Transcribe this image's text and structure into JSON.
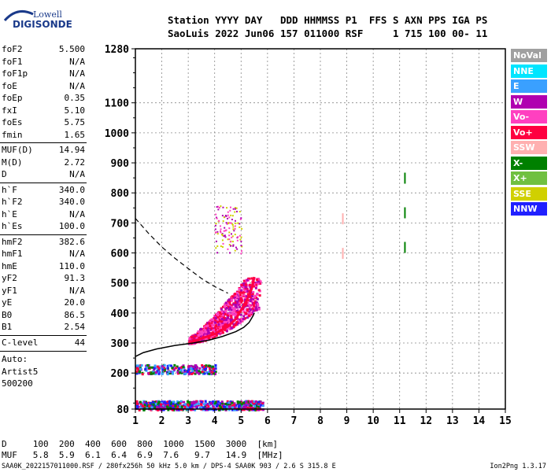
{
  "logo": {
    "top": "Lowell",
    "bottom": "DIGISONDE"
  },
  "header": {
    "line1": "Station YYYY DAY   DDD HHMMSS P1  FFS S AXN PPS IGA PS",
    "line2": "SaoLuis 2022 Jun06 157 011000 RSF     1 715 100 00- 11"
  },
  "parameters": [
    {
      "name": "foF2",
      "value": "5.500"
    },
    {
      "name": "foF1",
      "value": "N/A"
    },
    {
      "name": "foF1p",
      "value": "N/A"
    },
    {
      "name": "foE",
      "value": "N/A"
    },
    {
      "name": "foEp",
      "value": "0.35"
    },
    {
      "name": "fxI",
      "value": "5.10"
    },
    {
      "name": "foEs",
      "value": "5.75"
    },
    {
      "name": "fmin",
      "value": "1.65"
    },
    {
      "name": "MUF(D)",
      "value": "14.94"
    },
    {
      "name": "M(D)",
      "value": "2.72"
    },
    {
      "name": "D",
      "value": "N/A"
    },
    {
      "name": "h`F",
      "value": "340.0"
    },
    {
      "name": "h`F2",
      "value": "340.0"
    },
    {
      "name": "h`E",
      "value": "N/A"
    },
    {
      "name": "h`Es",
      "value": "100.0"
    },
    {
      "name": "hmF2",
      "value": "382.6"
    },
    {
      "name": "hmF1",
      "value": "N/A"
    },
    {
      "name": "hmE",
      "value": "110.0"
    },
    {
      "name": "yF2",
      "value": "91.3"
    },
    {
      "name": "yF1",
      "value": "N/A"
    },
    {
      "name": "yE",
      "value": "20.0"
    },
    {
      "name": "B0",
      "value": "86.5"
    },
    {
      "name": "B1",
      "value": "2.54"
    },
    {
      "name": "C-level",
      "value": "44"
    }
  ],
  "auto": {
    "line1": "Auto:",
    "line2": "Artist5",
    "line3": "500200"
  },
  "legend": [
    {
      "label": "NoVal",
      "color": "#a0a0a0"
    },
    {
      "label": "NNE",
      "color": "#00e5ff"
    },
    {
      "label": "E",
      "color": "#3aa0ff"
    },
    {
      "label": "W",
      "color": "#b000b0"
    },
    {
      "label": "Vo-",
      "color": "#ff40c0"
    },
    {
      "label": "Vo+",
      "color": "#ff0040"
    },
    {
      "label": "SSW",
      "color": "#ffb0b0"
    },
    {
      "label": "X-",
      "color": "#008000"
    },
    {
      "label": "X+",
      "color": "#70c040"
    },
    {
      "label": "SSE",
      "color": "#d0d000"
    },
    {
      "label": "NNW",
      "color": "#2020ff"
    }
  ],
  "muf_table": {
    "d_row": "D     100  200  400  600  800  1000  1500  3000  [km]",
    "muf_row": "MUF   5.8  5.9  6.1  6.4  6.9  7.6   9.7   14.9  [MHz]"
  },
  "footer": "SAA0K_2022157011000.RSF / 280fx256h 50 kHz 5.0 km / DPS-4 SAA0K 903 / 2.6 S 315.8 E",
  "version": "Ion2Png 1.3.17",
  "chart_data": {
    "type": "scatter",
    "xlim": [
      1,
      15
    ],
    "ylim": [
      80,
      1280
    ],
    "x_ticks": [
      1,
      2,
      3,
      4,
      5,
      6,
      7,
      8,
      9,
      10,
      11,
      12,
      13,
      14,
      15
    ],
    "y_ticks": [
      80,
      200,
      300,
      400,
      500,
      600,
      700,
      800,
      900,
      1000,
      1100,
      1280
    ],
    "grid": true,
    "colors": {
      "trace": "#ff40c0",
      "trace2": "#b000b0",
      "trace3": "#ff0040",
      "low": "#2020ff",
      "profile": "#000000"
    },
    "profile_curve": [
      [
        1.0,
        255
      ],
      [
        1.3,
        268
      ],
      [
        1.8,
        280
      ],
      [
        2.5,
        292
      ],
      [
        3.2,
        300
      ],
      [
        3.8,
        310
      ],
      [
        4.3,
        322
      ],
      [
        4.8,
        338
      ],
      [
        5.1,
        352
      ],
      [
        5.3,
        368
      ],
      [
        5.45,
        390
      ],
      [
        5.5,
        400
      ]
    ],
    "extrapolated_topside": [
      [
        1.0,
        715
      ],
      [
        1.5,
        665
      ],
      [
        2.0,
        620
      ],
      [
        2.5,
        582
      ],
      [
        3.0,
        548
      ],
      [
        3.5,
        515
      ],
      [
        4.0,
        488
      ],
      [
        4.5,
        466
      ]
    ],
    "f2_trace": [
      [
        3.0,
        300
      ],
      [
        3.5,
        315
      ],
      [
        4.0,
        330
      ],
      [
        4.5,
        355
      ],
      [
        4.8,
        380
      ],
      [
        5.0,
        410
      ],
      [
        5.2,
        440
      ],
      [
        5.4,
        480
      ],
      [
        5.5,
        520
      ]
    ],
    "f2_cloud": {
      "x": [
        3.0,
        5.7
      ],
      "y": [
        300,
        520
      ]
    },
    "oblique_echo": {
      "x": [
        4.0,
        5.0
      ],
      "y": [
        600,
        760
      ]
    },
    "es_layers": [
      {
        "x": [
          1.0,
          5.8
        ],
        "y": [
          80,
          110
        ],
        "label": ""
      },
      {
        "x": [
          1.0,
          4.0
        ],
        "y": [
          200,
          230
        ],
        "label": ""
      }
    ],
    "vertical_lines": [
      {
        "x": 8.85,
        "y": [
          580,
          760
        ],
        "color": "#ffb0b0"
      },
      {
        "x": 11.2,
        "y": [
          600,
          890
        ],
        "color": "#008000"
      }
    ]
  }
}
